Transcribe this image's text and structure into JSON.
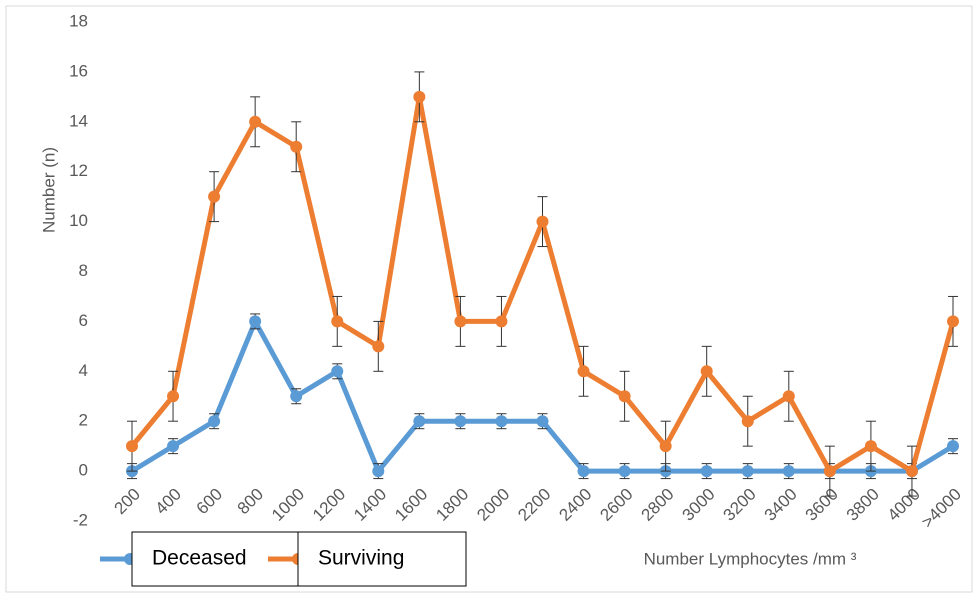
{
  "chart_data": {
    "type": "line",
    "y_label": "Number (n)",
    "x_label": "Number Lymphocytes /mm ³",
    "categories": [
      "200",
      "400",
      "600",
      "800",
      "1000",
      "1200",
      "1400",
      "1600",
      "1800",
      "2000",
      "2200",
      "2400",
      "2600",
      "2800",
      "3000",
      "3200",
      "3400",
      "3600",
      "3800",
      "4000",
      ">4000"
    ],
    "series": [
      {
        "name": "Deceased",
        "color": "#5b9bd5",
        "values": [
          0,
          1,
          2,
          6,
          3,
          4,
          0,
          2,
          2,
          2,
          2,
          0,
          0,
          0,
          0,
          0,
          0,
          0,
          0,
          0,
          1
        ],
        "errors": [
          0.3,
          0.3,
          0.3,
          0.3,
          0.3,
          0.3,
          0.3,
          0.3,
          0.3,
          0.3,
          0.3,
          0.3,
          0.3,
          0.3,
          0.3,
          0.3,
          0.3,
          0.3,
          0.3,
          0.3,
          0.3
        ]
      },
      {
        "name": "Surviving",
        "color": "#ed7d31",
        "values": [
          1,
          3,
          11,
          14,
          13,
          6,
          5,
          15,
          6,
          6,
          10,
          4,
          3,
          1,
          4,
          2,
          3,
          0,
          1,
          0,
          6
        ],
        "errors": [
          1,
          1,
          1,
          1,
          1,
          1,
          1,
          1,
          1,
          1,
          1,
          1,
          1,
          1,
          1,
          1,
          1,
          1,
          1,
          1,
          1
        ]
      }
    ],
    "ylim": [
      -2,
      18
    ],
    "yticks": [
      -2,
      0,
      2,
      4,
      6,
      8,
      10,
      12,
      14,
      16,
      18
    ]
  }
}
